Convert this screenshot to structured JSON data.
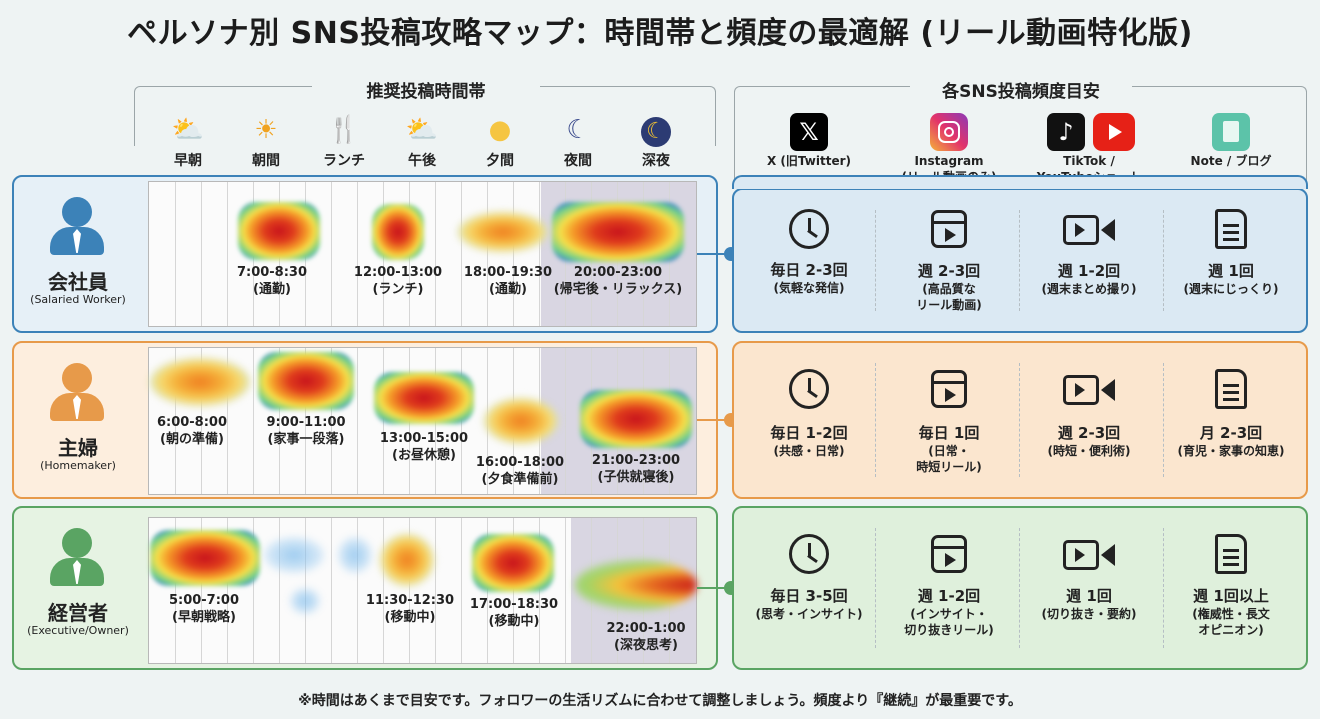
{
  "title": "ペルソナ別 SNS投稿攻略マップ：時間帯と頻度の最適解 (リール動画特化版)",
  "headers": {
    "time": "推奨投稿時間帯",
    "sns": "各SNS投稿頻度目安"
  },
  "time_slots": [
    {
      "label": "早朝",
      "icon": "sun-cloud-icon"
    },
    {
      "label": "朝間",
      "icon": "sun-icon"
    },
    {
      "label": "ランチ",
      "icon": "fork-knife-icon"
    },
    {
      "label": "午後",
      "icon": "sun-cloud-icon"
    },
    {
      "label": "夕間",
      "icon": "sunset-icon"
    },
    {
      "label": "夜間",
      "icon": "moon-stars-icon"
    },
    {
      "label": "深夜",
      "icon": "moon-icon"
    }
  ],
  "sns_columns": [
    {
      "label": "X (旧Twitter)",
      "icon": "x-logo-icon"
    },
    {
      "label": "Instagram\n(リール動画のみ)",
      "icon": "instagram-logo-icon"
    },
    {
      "label": "TikTok /\nYouTubeショート",
      "icon": "tiktok-youtube-logo-icon"
    },
    {
      "label": "Note / ブログ",
      "icon": "note-logo-icon"
    }
  ],
  "personas": [
    {
      "name": "会社員",
      "sub": "(Salaried Worker)",
      "icon": "office-worker-icon",
      "color": "#3c82b8",
      "panel_bg": "#dbe9f3",
      "bg": "#e6f0f7",
      "times": [
        {
          "time": "7:00-8:30",
          "note": "(通勤)"
        },
        {
          "time": "12:00-13:00",
          "note": "(ランチ)"
        },
        {
          "time": "18:00-19:30",
          "note": "(通勤)"
        },
        {
          "time": "20:00-23:00",
          "note": "(帰宅後・リラックス)"
        }
      ],
      "freq": [
        {
          "freq": "毎日 2-3回",
          "note": "(気軽な発信)"
        },
        {
          "freq": "週 2-3回",
          "note": "(高品質な\nリール動画)"
        },
        {
          "freq": "週 1-2回",
          "note": "(週末まとめ撮り)"
        },
        {
          "freq": "週 1回",
          "note": "(週末にじっくり)"
        }
      ]
    },
    {
      "name": "主婦",
      "sub": "(Homemaker)",
      "icon": "homemaker-icon",
      "color": "#e79a4a",
      "panel_bg": "#fbe6cf",
      "bg": "#fdeede",
      "times": [
        {
          "time": "6:00-8:00",
          "note": "(朝の準備)"
        },
        {
          "time": "9:00-11:00",
          "note": "(家事一段落)"
        },
        {
          "time": "13:00-15:00",
          "note": "(お昼休憩)"
        },
        {
          "time": "16:00-18:00",
          "note": "(夕食準備前)"
        },
        {
          "time": "21:00-23:00",
          "note": "(子供就寝後)"
        }
      ],
      "freq": [
        {
          "freq": "毎日 1-2回",
          "note": "(共感・日常)"
        },
        {
          "freq": "毎日 1回",
          "note": "(日常・\n時短リール)"
        },
        {
          "freq": "週 2-3回",
          "note": "(時短・便利術)"
        },
        {
          "freq": "月 2-3回",
          "note": "(育児・家事の知恵)"
        }
      ]
    },
    {
      "name": "経営者",
      "sub": "(Executive/Owner)",
      "icon": "executive-icon",
      "color": "#5aa463",
      "panel_bg": "#dff0dc",
      "bg": "#e6f3e3",
      "times": [
        {
          "time": "5:00-7:00",
          "note": "(早朝戦略)"
        },
        {
          "time": "11:30-12:30",
          "note": "(移動中)"
        },
        {
          "time": "17:00-18:30",
          "note": "(移動中)"
        },
        {
          "time": "22:00-1:00",
          "note": "(深夜思考)"
        }
      ],
      "freq": [
        {
          "freq": "毎日 3-5回",
          "note": "(思考・インサイト)"
        },
        {
          "freq": "週 1-2回",
          "note": "(インサイト・\n切り抜きリール)"
        },
        {
          "freq": "週 1回",
          "note": "(切り抜き・要約)"
        },
        {
          "freq": "週 1回以上",
          "note": "(権威性・長文\nオピニオン)"
        }
      ]
    }
  ],
  "footer": "※時間はあくまで目安です。フォロワーの生活リズムに合わせて調整しましょう。頻度より『継続』が最重要です。"
}
